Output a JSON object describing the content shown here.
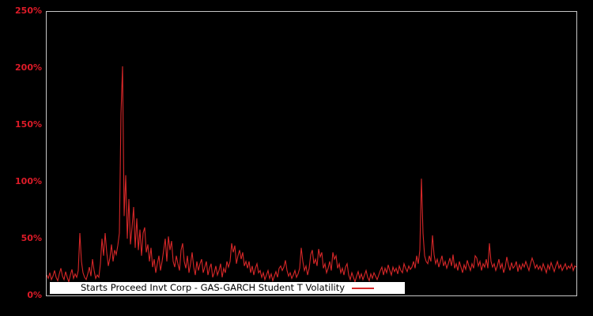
{
  "chart": {
    "background_color": "#000000",
    "plot_border_color": "#c6c6c6",
    "tick_label_color": "#dd1b28",
    "y_ticks": [
      "250%",
      "200%",
      "150%",
      "100%",
      "50%",
      "0%"
    ],
    "legend": {
      "label": "Starts Proceed Invt Corp - GAS-GARCH Student T Volatility",
      "background": "#ffffff",
      "text_color": "#000000",
      "swatch_color": "#d62728"
    }
  },
  "chart_data": {
    "type": "line",
    "title": "",
    "xlabel": "",
    "ylabel": "",
    "ylim": [
      0,
      250
    ],
    "y_unit": "percent",
    "y_tick_labels": [
      "0%",
      "50%",
      "100%",
      "150%",
      "200%",
      "250%"
    ],
    "x_tick_labels": [],
    "grid": false,
    "legend_position": "bottom-center",
    "background": "black",
    "series": [
      {
        "name": "Starts Proceed Invt Corp - GAS-GARCH Student T Volatility",
        "color": "#d62728",
        "values": [
          18,
          15,
          20,
          14,
          17,
          22,
          16,
          13,
          19,
          24,
          17,
          14,
          21,
          16,
          12,
          18,
          23,
          15,
          19,
          16,
          22,
          55,
          30,
          20,
          16,
          14,
          19,
          25,
          17,
          32,
          22,
          15,
          18,
          16,
          28,
          50,
          35,
          55,
          38,
          26,
          33,
          45,
          30,
          40,
          36,
          44,
          55,
          160,
          202,
          70,
          106,
          50,
          85,
          45,
          60,
          78,
          42,
          68,
          40,
          58,
          35,
          55,
          60,
          38,
          45,
          30,
          42,
          25,
          32,
          20,
          28,
          35,
          22,
          30,
          40,
          50,
          30,
          52,
          40,
          48,
          30,
          25,
          35,
          28,
          22,
          40,
          46,
          30,
          24,
          35,
          20,
          28,
          38,
          25,
          18,
          30,
          22,
          28,
          32,
          20,
          25,
          30,
          18,
          24,
          28,
          16,
          20,
          26,
          18,
          22,
          28,
          16,
          24,
          20,
          30,
          25,
          30,
          46,
          38,
          44,
          28,
          35,
          40,
          32,
          38,
          26,
          30,
          24,
          30,
          20,
          26,
          18,
          24,
          28,
          20,
          22,
          16,
          20,
          14,
          18,
          22,
          15,
          19,
          13,
          17,
          21,
          16,
          24,
          26,
          22,
          25,
          31,
          22,
          17,
          20,
          15,
          18,
          22,
          16,
          19,
          24,
          42,
          30,
          22,
          26,
          18,
          24,
          36,
          40,
          28,
          32,
          26,
          41,
          34,
          38,
          24,
          28,
          20,
          24,
          30,
          22,
          38,
          32,
          35,
          24,
          28,
          20,
          24,
          18,
          25,
          28,
          18,
          14,
          20,
          16,
          12,
          17,
          21,
          15,
          19,
          14,
          18,
          22,
          16,
          13,
          19,
          15,
          20,
          17,
          14,
          18,
          22,
          25,
          18,
          24,
          20,
          27,
          22,
          18,
          25,
          21,
          24,
          19,
          26,
          22,
          20,
          28,
          24,
          21,
          26,
          23,
          25,
          30,
          24,
          35,
          28,
          40,
          103,
          55,
          35,
          30,
          28,
          35,
          30,
          53,
          36,
          28,
          32,
          25,
          30,
          35,
          26,
          30,
          24,
          28,
          33,
          26,
          36,
          24,
          28,
          22,
          30,
          25,
          20,
          27,
          23,
          31,
          26,
          22,
          28,
          24,
          35,
          33,
          26,
          30,
          22,
          28,
          25,
          32,
          24,
          46,
          30,
          25,
          28,
          22,
          26,
          32,
          24,
          28,
          20,
          25,
          34,
          27,
          22,
          29,
          24,
          26,
          30,
          21,
          27,
          23,
          28,
          25,
          30,
          26,
          22,
          28,
          33,
          29,
          24,
          27,
          23,
          26,
          22,
          28,
          24,
          20,
          27,
          23,
          29,
          25,
          21,
          26,
          30,
          24,
          27,
          22,
          25,
          28,
          23,
          26,
          24,
          28,
          22,
          26,
          25
        ]
      }
    ]
  }
}
